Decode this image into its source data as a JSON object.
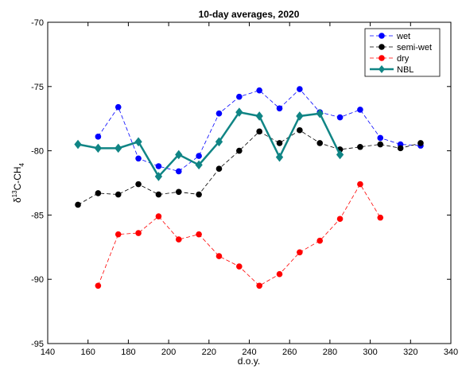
{
  "chart_data": {
    "type": "line",
    "title": "10-day averages, 2020",
    "xlabel": "d.o.y.",
    "ylabel": [
      "δ",
      "13",
      "C-CH",
      "4"
    ],
    "xlim": [
      140,
      340
    ],
    "xticks": [
      140,
      160,
      180,
      200,
      220,
      240,
      260,
      280,
      300,
      320,
      340
    ],
    "ylim": [
      -95,
      -70
    ],
    "yticks": [
      -95,
      -90,
      -85,
      -80,
      -75,
      -70
    ],
    "legend": "upper right",
    "series": [
      {
        "name": "wet",
        "color": "#0000ff",
        "linestyle": "dashed",
        "marker": "circle",
        "x": [
          165,
          175,
          185,
          195,
          205,
          215,
          225,
          235,
          245,
          255,
          265,
          275,
          285,
          295,
          305,
          315,
          325
        ],
        "values": [
          -78.9,
          -76.6,
          -80.6,
          -81.2,
          -81.6,
          -80.4,
          -77.1,
          -75.8,
          -75.3,
          -76.7,
          -75.2,
          -77.0,
          -77.4,
          -76.8,
          -79.0,
          -79.5,
          -79.6
        ]
      },
      {
        "name": "semi-wet",
        "color": "#000000",
        "linestyle": "dashed",
        "marker": "circle",
        "x": [
          155,
          165,
          175,
          185,
          195,
          205,
          215,
          225,
          235,
          245,
          255,
          265,
          275,
          285,
          295,
          305,
          315,
          325
        ],
        "values": [
          -84.2,
          -83.3,
          -83.4,
          -82.6,
          -83.4,
          -83.2,
          -83.4,
          -81.4,
          -80.0,
          -78.5,
          -79.4,
          -78.4,
          -79.4,
          -79.9,
          -79.7,
          -79.5,
          -79.8,
          -79.4
        ]
      },
      {
        "name": "dry",
        "color": "#ff0000",
        "linestyle": "dashed",
        "marker": "circle",
        "x": [
          165,
          175,
          185,
          195,
          205,
          215,
          225,
          235,
          245,
          255,
          265,
          275,
          285,
          295,
          305
        ],
        "values": [
          -90.5,
          -86.5,
          -86.4,
          -85.1,
          -86.9,
          -86.5,
          -88.2,
          -89.0,
          -90.5,
          -89.6,
          -87.9,
          -87.0,
          -85.3,
          -82.6,
          -85.2
        ]
      },
      {
        "name": "NBL",
        "color": "#108585",
        "linestyle": "solid",
        "marker": "diamond",
        "x": [
          155,
          165,
          175,
          185,
          195,
          205,
          215,
          225,
          235,
          245,
          255,
          265,
          275,
          285
        ],
        "values": [
          -79.5,
          -79.8,
          -79.8,
          -79.3,
          -82.0,
          -80.3,
          -81.1,
          -79.3,
          -77.0,
          -77.3,
          -80.5,
          -77.3,
          -77.1,
          -80.3
        ]
      }
    ]
  }
}
